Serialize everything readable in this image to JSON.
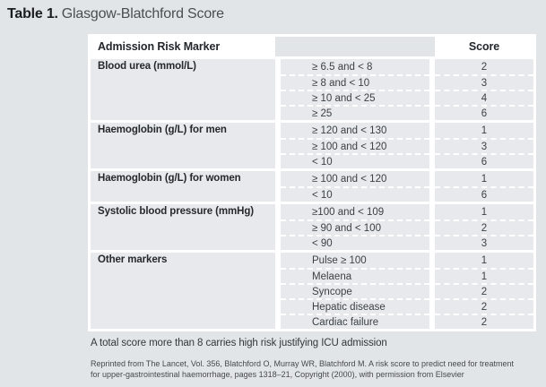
{
  "title": {
    "label": "Table 1.",
    "subtitle": "Glasgow-Blatchford Score"
  },
  "table": {
    "header": {
      "marker": "Admission Risk Marker",
      "score": "Score"
    },
    "groups": [
      {
        "marker": "Blood urea (mmol/L)",
        "rows": [
          {
            "value": "≥ 6.5 and < 8",
            "score": "2"
          },
          {
            "value": "≥ 8 and < 10",
            "score": "3"
          },
          {
            "value": "≥ 10 and < 25",
            "score": "4"
          },
          {
            "value": "≥ 25",
            "score": "6"
          }
        ]
      },
      {
        "marker": "Haemoglobin (g/L) for men",
        "rows": [
          {
            "value": "≥ 120 and < 130",
            "score": "1"
          },
          {
            "value": "≥ 100 and < 120",
            "score": "3"
          },
          {
            "value": "< 10",
            "score": "6"
          }
        ]
      },
      {
        "marker": "Haemoglobin (g/L) for women",
        "rows": [
          {
            "value": "≥ 100 and < 120",
            "score": "1"
          },
          {
            "value": "< 10",
            "score": "6"
          }
        ]
      },
      {
        "marker": "Systolic blood pressure (mmHg)",
        "rows": [
          {
            "value": "≥100 and < 109",
            "score": "1"
          },
          {
            "value": "≥ 90 and < 100",
            "score": "2"
          },
          {
            "value": "< 90",
            "score": "3"
          }
        ]
      },
      {
        "marker": "Other markers",
        "rows": [
          {
            "value": "Pulse ≥ 100",
            "score": "1"
          },
          {
            "value": "Melaena",
            "score": "1"
          },
          {
            "value": "Syncope",
            "score": "2"
          },
          {
            "value": "Hepatic disease",
            "score": "2"
          },
          {
            "value": "Cardiac failure",
            "score": "2"
          }
        ]
      }
    ]
  },
  "note": "A total score more than 8 carries high risk justifying ICU admission",
  "citation": {
    "line1": "Reprinted from The Lancet, Vol. 356, Blatchford O, Murray WR, Blatchford M. A risk score to predict need for treatment",
    "line2": "for upper-gastrointestinal haemorrhage, pages 1318–21, Copyright (2000), with permission from Elsevier"
  },
  "colors": {
    "page_bg": "#e2e5e8",
    "cell_bg": "#e7e9ec",
    "header_bg": "#ffffff",
    "separator": "#ffffff",
    "text": "#3c4145",
    "heading_text": "#23272b"
  }
}
